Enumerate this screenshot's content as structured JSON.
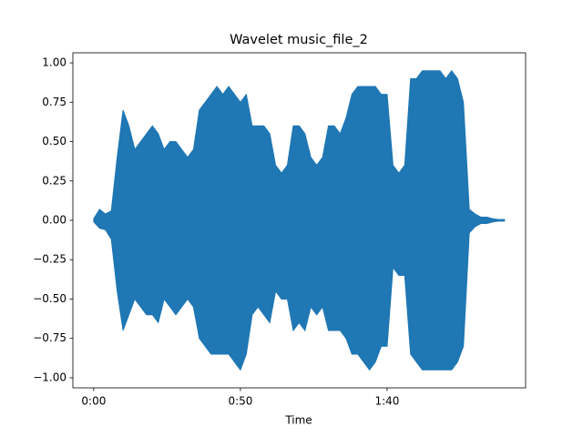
{
  "chart_data": {
    "type": "waveform",
    "title": "Wavelet music_file_2",
    "xlabel": "Time",
    "color": "#1f77b4",
    "grid": false,
    "xlim": [
      -7.1,
      147.2
    ],
    "ylim": [
      -1.064,
      1.064
    ],
    "xticks": [
      {
        "value": 0,
        "label": "0:00"
      },
      {
        "value": 50,
        "label": "0:50"
      },
      {
        "value": 100,
        "label": "1:40"
      }
    ],
    "yticks": [
      {
        "value": -1,
        "label": "−1.00"
      },
      {
        "value": -0.75,
        "label": "−0.75"
      },
      {
        "value": -0.5,
        "label": "−0.50"
      },
      {
        "value": -0.25,
        "label": "−0.25"
      },
      {
        "value": 0,
        "label": "0.00"
      },
      {
        "value": 0.25,
        "label": "0.25"
      },
      {
        "value": 0.5,
        "label": "0.50"
      },
      {
        "value": 0.75,
        "label": "0.75"
      },
      {
        "value": 1,
        "label": "1.00"
      }
    ],
    "x": [
      0,
      2,
      4,
      6,
      8,
      10,
      12,
      14,
      16,
      18,
      20,
      22,
      24,
      26,
      28,
      30,
      32,
      34,
      36,
      38,
      40,
      42,
      44,
      46,
      48,
      50,
      52,
      54,
      56,
      58,
      60,
      62,
      64,
      66,
      68,
      70,
      72,
      74,
      76,
      78,
      80,
      82,
      84,
      86,
      88,
      90,
      92,
      94,
      96,
      98,
      100,
      102,
      104,
      106,
      108,
      110,
      112,
      114,
      116,
      118,
      120,
      122,
      124,
      126,
      128,
      130,
      132,
      134,
      136,
      138,
      140
    ],
    "upper": [
      0.01,
      0.07,
      0.04,
      0.06,
      0.4,
      0.7,
      0.6,
      0.45,
      0.5,
      0.55,
      0.6,
      0.55,
      0.45,
      0.5,
      0.5,
      0.45,
      0.4,
      0.45,
      0.7,
      0.75,
      0.8,
      0.85,
      0.8,
      0.85,
      0.8,
      0.75,
      0.8,
      0.6,
      0.6,
      0.6,
      0.55,
      0.35,
      0.3,
      0.35,
      0.6,
      0.6,
      0.55,
      0.4,
      0.35,
      0.4,
      0.6,
      0.6,
      0.55,
      0.65,
      0.8,
      0.85,
      0.85,
      0.85,
      0.85,
      0.8,
      0.8,
      0.35,
      0.3,
      0.35,
      0.9,
      0.9,
      0.95,
      0.95,
      0.95,
      0.95,
      0.9,
      0.95,
      0.9,
      0.75,
      0.07,
      0.04,
      0.02,
      0.02,
      0.01,
      0.005,
      0.005
    ],
    "lower": [
      -0.01,
      -0.05,
      -0.06,
      -0.12,
      -0.45,
      -0.7,
      -0.6,
      -0.5,
      -0.55,
      -0.6,
      -0.6,
      -0.65,
      -0.5,
      -0.55,
      -0.6,
      -0.55,
      -0.5,
      -0.55,
      -0.75,
      -0.8,
      -0.85,
      -0.85,
      -0.85,
      -0.85,
      -0.9,
      -0.95,
      -0.85,
      -0.6,
      -0.55,
      -0.6,
      -0.65,
      -0.45,
      -0.5,
      -0.5,
      -0.7,
      -0.65,
      -0.7,
      -0.55,
      -0.6,
      -0.55,
      -0.7,
      -0.7,
      -0.7,
      -0.75,
      -0.85,
      -0.85,
      -0.9,
      -0.95,
      -0.9,
      -0.8,
      -0.8,
      -0.3,
      -0.35,
      -0.35,
      -0.85,
      -0.9,
      -0.95,
      -0.95,
      -0.95,
      -0.95,
      -0.95,
      -0.95,
      -0.9,
      -0.8,
      -0.08,
      -0.04,
      -0.02,
      -0.02,
      -0.01,
      -0.005,
      -0.005
    ]
  }
}
